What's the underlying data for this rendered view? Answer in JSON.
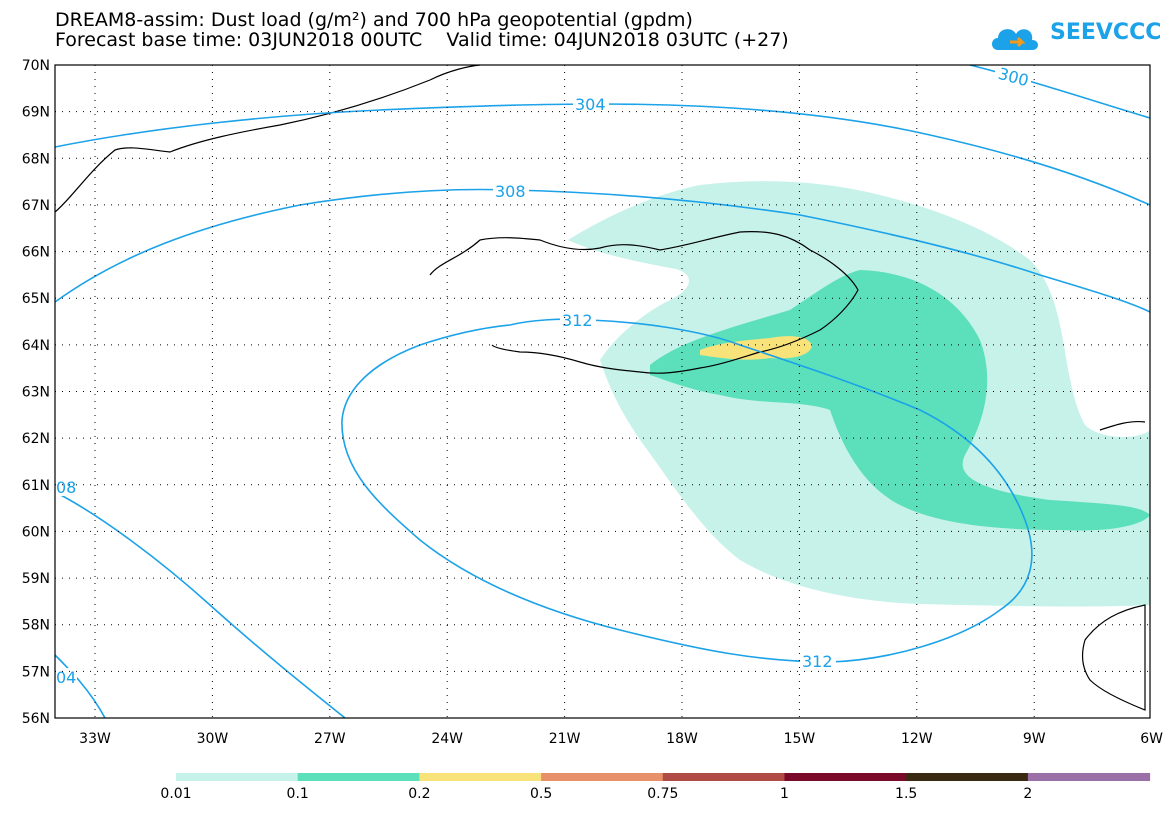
{
  "header": {
    "title_line1": "DREAM8-assim: Dust load (g/m²) and 700 hPa geopotential (gpdm)",
    "title_line2": "Forecast base time: 03JUN2018 00UTC    Valid time: 04JUN2018 03UTC (+27)",
    "logo_text": "SEEVCCC"
  },
  "axes": {
    "lat_labels": [
      "70N",
      "69N",
      "68N",
      "67N",
      "66N",
      "65N",
      "64N",
      "63N",
      "62N",
      "61N",
      "60N",
      "59N",
      "58N",
      "57N",
      "56N"
    ],
    "lon_labels": [
      "33W",
      "30W",
      "27W",
      "24W",
      "21W",
      "18W",
      "15W",
      "12W",
      "9W",
      "6W"
    ]
  },
  "contour_labels": [
    "304",
    "300",
    "308",
    "312",
    "312",
    "08",
    "04"
  ],
  "colorbar": {
    "labels": [
      "0.01",
      "0.1",
      "0.2",
      "0.5",
      "0.75",
      "1",
      "1.5",
      "2"
    ],
    "colors": [
      "#c7f2ea",
      "#5ce0bc",
      "#f8e27a",
      "#e8906a",
      "#b04a44",
      "#7a0a2a",
      "#3a2a14",
      "#9a70a6"
    ]
  },
  "colors": {
    "contour": "#1ba2e8",
    "dust_low": "#c7f2ea",
    "dust_mid": "#5ce0bc",
    "dust_high": "#f8e27a"
  }
}
